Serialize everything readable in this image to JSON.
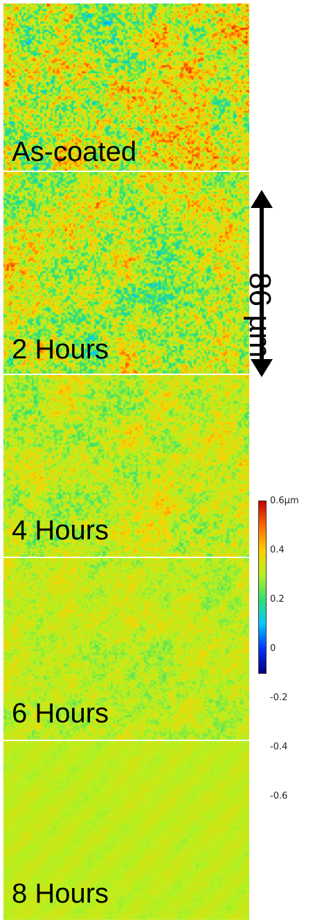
{
  "panels": [
    {
      "label": "As-coated",
      "roughness": 1.0,
      "baseline": 0.05,
      "seed": 11,
      "spot_color": "#e8441c"
    },
    {
      "label": "2 Hours",
      "roughness": 0.85,
      "baseline": 0.0,
      "seed": 23,
      "spot_color": "#2255d8"
    },
    {
      "label": "4 Hours",
      "roughness": 0.55,
      "baseline": 0.02,
      "seed": 37,
      "spot_color": "#f0a020"
    },
    {
      "label": "6 Hours",
      "roughness": 0.35,
      "baseline": 0.0,
      "seed": 41,
      "spot_color": "#3bd0b0"
    },
    {
      "label": "8 Hours",
      "roughness": 0.1,
      "baseline": 0.0,
      "seed": 53,
      "spot_color": "#9be24b"
    }
  ],
  "scale_bar": {
    "label": "86 µm"
  },
  "colorbar": {
    "max_label": "0.6µm",
    "ticks": [
      "0.6µm",
      "0.4",
      "0.2",
      "0",
      "-0.2",
      "-0.4",
      "-0.6"
    ],
    "colors": [
      "#00007a",
      "#0033ff",
      "#00c8ff",
      "#33e070",
      "#b8f020",
      "#ffd000",
      "#ff6a00",
      "#c80000"
    ]
  }
}
